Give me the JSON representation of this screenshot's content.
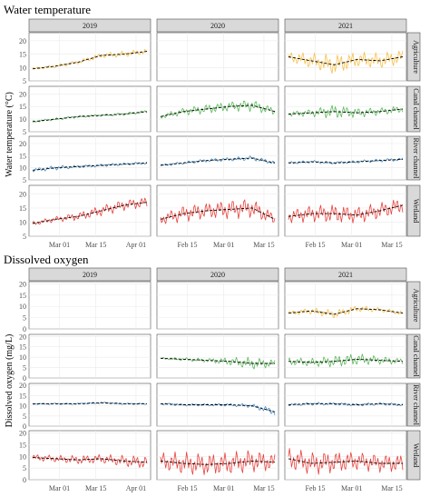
{
  "chart_data": [
    {
      "type": "line",
      "title": "Water temperature",
      "ylabel": "Water temperature (°C)",
      "ylim": [
        5,
        23
      ],
      "yticks": [
        5,
        10,
        15,
        20
      ],
      "years": [
        "2019",
        "2020",
        "2021"
      ],
      "sites": [
        "Agriculture",
        "Canal channel",
        "River channel",
        "Wetland"
      ],
      "x_ticks": {
        "2019": [
          "Mar 01",
          "Mar 15",
          "Apr 01"
        ],
        "2020": [
          "Feb 15",
          "Mar 01",
          "Mar 15"
        ],
        "2021": [
          "Feb 15",
          "Mar 01",
          "Mar 15"
        ]
      },
      "colors": {
        "Agriculture": "#f7c04a",
        "Canal channel": "#5cb85c",
        "River channel": "#4a90c8",
        "Wetland": "#e8413c"
      },
      "series": [
        {
          "year": "2019",
          "site": "Agriculture",
          "x": [
            0,
            0.2,
            0.4,
            0.6,
            0.8,
            1.0
          ],
          "mean": [
            9.5,
            10.5,
            12,
            14.5,
            15,
            16
          ],
          "spread": [
            0.5,
            0.6,
            0.8,
            1,
            1.2,
            1
          ]
        },
        {
          "year": "2021",
          "site": "Agriculture",
          "x": [
            0,
            0.2,
            0.4,
            0.6,
            0.8,
            1.0
          ],
          "mean": [
            14,
            12.5,
            11,
            13,
            12.5,
            14
          ],
          "spread": [
            2,
            3,
            4,
            3,
            3,
            3
          ]
        },
        {
          "year": "2019",
          "site": "Canal channel",
          "x": [
            0,
            0.2,
            0.4,
            0.6,
            0.8,
            1.0
          ],
          "mean": [
            9,
            10,
            11,
            11.5,
            12,
            13
          ],
          "spread": [
            0.4,
            0.5,
            0.5,
            0.5,
            0.6,
            0.6
          ]
        },
        {
          "year": "2020",
          "site": "Canal channel",
          "x": [
            0,
            0.2,
            0.4,
            0.6,
            0.8,
            1.0
          ],
          "mean": [
            11,
            13,
            14,
            15,
            15.5,
            13
          ],
          "spread": [
            1,
            1.5,
            2,
            2,
            2.5,
            1.5
          ]
        },
        {
          "year": "2021",
          "site": "Canal channel",
          "x": [
            0,
            0.2,
            0.4,
            0.6,
            0.8,
            1.0
          ],
          "mean": [
            12,
            12.5,
            13,
            12.5,
            13,
            14
          ],
          "spread": [
            1,
            1.5,
            3,
            2,
            1.5,
            1.5
          ]
        },
        {
          "year": "2019",
          "site": "River channel",
          "x": [
            0,
            0.2,
            0.4,
            0.6,
            0.8,
            1.0
          ],
          "mean": [
            9,
            10,
            10.5,
            11,
            11.5,
            12
          ],
          "spread": [
            0.8,
            1,
            0.6,
            0.6,
            0.6,
            0.6
          ]
        },
        {
          "year": "2020",
          "site": "River channel",
          "x": [
            0,
            0.2,
            0.4,
            0.6,
            0.8,
            1.0
          ],
          "mean": [
            11,
            12,
            13,
            13.5,
            14,
            12
          ],
          "spread": [
            0.5,
            0.6,
            0.7,
            0.8,
            1,
            0.8
          ]
        },
        {
          "year": "2021",
          "site": "River channel",
          "x": [
            0,
            0.2,
            0.4,
            0.6,
            0.8,
            1.0
          ],
          "mean": [
            12,
            12.5,
            12,
            12.5,
            13,
            13.5
          ],
          "spread": [
            0.6,
            0.6,
            0.6,
            0.6,
            0.7,
            0.7
          ]
        },
        {
          "year": "2019",
          "site": "Wetland",
          "x": [
            0,
            0.2,
            0.4,
            0.6,
            0.8,
            1.0
          ],
          "mean": [
            9.5,
            11,
            12,
            14,
            16,
            17
          ],
          "spread": [
            0.8,
            1,
            1.5,
            2,
            2,
            2
          ]
        },
        {
          "year": "2020",
          "site": "Wetland",
          "x": [
            0,
            0.2,
            0.4,
            0.6,
            0.8,
            1.0
          ],
          "mean": [
            11,
            13,
            14,
            14.5,
            15,
            11
          ],
          "spread": [
            2,
            3,
            3,
            3.5,
            3.5,
            2
          ]
        },
        {
          "year": "2021",
          "site": "Wetland",
          "x": [
            0,
            0.2,
            0.4,
            0.6,
            0.8,
            1.0
          ],
          "mean": [
            12,
            13,
            13,
            12.5,
            14,
            16
          ],
          "spread": [
            2.5,
            3,
            3.5,
            3,
            3,
            3
          ]
        }
      ]
    },
    {
      "type": "line",
      "title": "Dissolved oxygen",
      "ylabel": "Dissolved oxygen (mg/L)",
      "ylim": [
        0,
        21
      ],
      "yticks": [
        0,
        5,
        10,
        15,
        20
      ],
      "years": [
        "2019",
        "2020",
        "2021"
      ],
      "sites": [
        "Agriculture",
        "Canal channel",
        "River channel",
        "Wetland"
      ],
      "x_ticks": {
        "2019": [
          "Mar 01",
          "Mar 15",
          "Apr 01"
        ],
        "2020": [
          "Feb 15",
          "Mar 01",
          "Mar 15"
        ],
        "2021": [
          "Feb 15",
          "Mar 01",
          "Mar 15"
        ]
      },
      "colors": {
        "Agriculture": "#f7c04a",
        "Canal channel": "#5cb85c",
        "River channel": "#4a90c8",
        "Wetland": "#e8413c"
      },
      "series": [
        {
          "year": "2021",
          "site": "Agriculture",
          "x": [
            0,
            0.2,
            0.4,
            0.6,
            0.8,
            1.0
          ],
          "mean": [
            7,
            8,
            6.5,
            9,
            8.5,
            7
          ],
          "spread": [
            1,
            1.5,
            2,
            1.5,
            1,
            1
          ]
        },
        {
          "year": "2020",
          "site": "Canal channel",
          "x": [
            0,
            0.2,
            0.4,
            0.6,
            0.8,
            1.0
          ],
          "mean": [
            9.5,
            9,
            8.5,
            8,
            7,
            7
          ],
          "spread": [
            0.5,
            0.8,
            1,
            2,
            3,
            2
          ]
        },
        {
          "year": "2021",
          "site": "Canal channel",
          "x": [
            0,
            0.2,
            0.4,
            0.6,
            0.8,
            1.0
          ],
          "mean": [
            8,
            7.5,
            8,
            9,
            8.5,
            8
          ],
          "spread": [
            2,
            2,
            3,
            3,
            2,
            1.5
          ]
        },
        {
          "year": "2019",
          "site": "River channel",
          "x": [
            0,
            0.2,
            0.4,
            0.6,
            0.8,
            1.0
          ],
          "mean": [
            11,
            11,
            11,
            11.5,
            11,
            11
          ],
          "spread": [
            0.4,
            0.4,
            0.4,
            0.5,
            0.4,
            0.4
          ]
        },
        {
          "year": "2020",
          "site": "River channel",
          "x": [
            0,
            0.2,
            0.4,
            0.6,
            0.8,
            1.0
          ],
          "mean": [
            11,
            10.5,
            10.5,
            10.5,
            10,
            7
          ],
          "spread": [
            0.6,
            0.6,
            0.6,
            0.8,
            1,
            2
          ]
        },
        {
          "year": "2021",
          "site": "River channel",
          "x": [
            0,
            0.2,
            0.4,
            0.6,
            0.8,
            1.0
          ],
          "mean": [
            10.5,
            11,
            11,
            10.5,
            11,
            10.5
          ],
          "spread": [
            0.6,
            0.8,
            0.7,
            0.7,
            0.7,
            0.7
          ]
        },
        {
          "year": "2019",
          "site": "Wetland",
          "x": [
            0,
            0.2,
            0.4,
            0.6,
            0.8,
            1.0
          ],
          "mean": [
            9.5,
            9,
            8.5,
            9,
            8,
            7.5
          ],
          "spread": [
            1.5,
            1.5,
            2,
            2,
            2.5,
            3
          ]
        },
        {
          "year": "2020",
          "site": "Wetland",
          "x": [
            0,
            0.2,
            0.4,
            0.6,
            0.8,
            1.0
          ],
          "mean": [
            8,
            7,
            6.5,
            7,
            8,
            7.5
          ],
          "spread": [
            4,
            5,
            5,
            5,
            5,
            4
          ]
        },
        {
          "year": "2021",
          "site": "Wetland",
          "x": [
            0,
            0.2,
            0.4,
            0.6,
            0.8,
            1.0
          ],
          "mean": [
            9,
            7,
            7.5,
            8,
            7,
            7
          ],
          "spread": [
            5,
            5,
            5,
            4,
            4,
            4
          ]
        }
      ]
    }
  ]
}
